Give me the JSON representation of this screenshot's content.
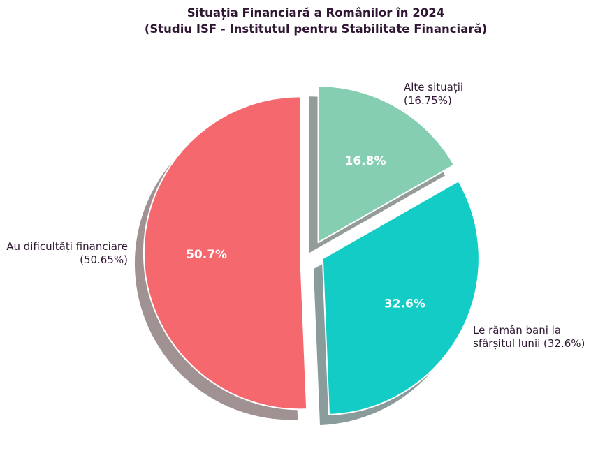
{
  "title": {
    "line1": "Situația Financiară a Românilor în 2024",
    "line2": "(Studiu ISF - Institutul pentru Stabilitate Financiară)"
  },
  "chart_data": {
    "type": "pie",
    "title": "Situația Financiară a Românilor în 2024 (Studiu ISF - Institutul pentru Stabilitate Financiară)",
    "start_angle_deg": 0,
    "direction": "clockwise",
    "exploded": true,
    "shadow": true,
    "legend": "none",
    "slices": [
      {
        "name": "alte-situatii",
        "label_line1": "Alte situații",
        "label_line2": "(16.75%)",
        "label_full": "Alte situații (16.75%)",
        "value": 16.75,
        "pct_label": "16.8%",
        "color": "#85ceb1"
      },
      {
        "name": "le-raman-bani",
        "label_line1": "Le rămân bani la",
        "label_line2": "sfârșitul lunii (32.6%)",
        "label_full": "Le rămân bani la sfârșitul lunii (32.6%)",
        "value": 32.6,
        "pct_label": "32.6%",
        "color": "#13ccc5"
      },
      {
        "name": "au-dificultati",
        "label_line1": "Au dificultăți financiare",
        "label_line2": "(50.65%)",
        "label_full": "Au dificultăți financiare (50.65%)",
        "value": 50.65,
        "pct_label": "50.7%",
        "color": "#f5696e"
      }
    ],
    "colors": {
      "title_text": "#2f1733",
      "label_text": "#2f1733",
      "pct_text": "#ffffff",
      "shadow_gray": "#969696",
      "background": "#ffffff",
      "wedge_edge": "#ffffff"
    }
  }
}
